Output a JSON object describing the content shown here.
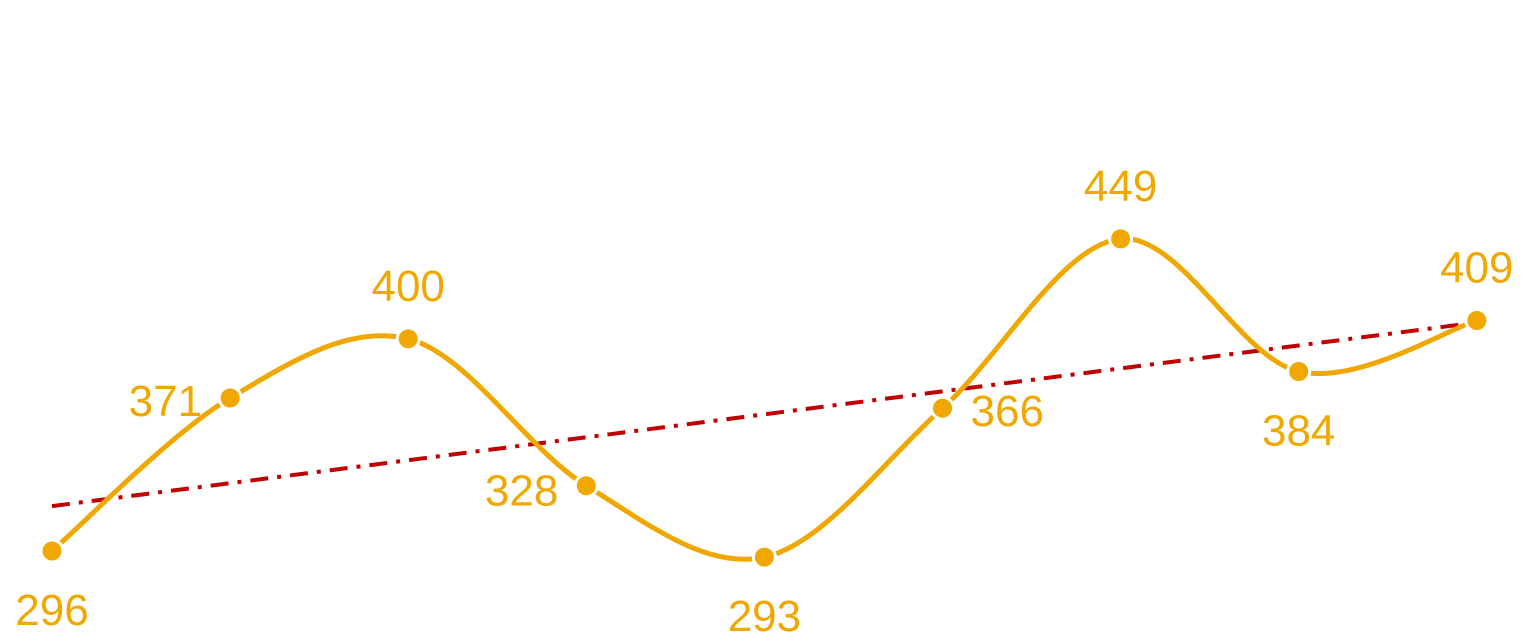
{
  "colors": {
    "series": "#F0A800",
    "trend": "#C00000",
    "background": "#FFFFFF"
  },
  "chart_data": {
    "type": "line",
    "title": "",
    "xlabel": "",
    "ylabel": "",
    "x": [
      1,
      2,
      3,
      4,
      5,
      6,
      7,
      8,
      9
    ],
    "values": [
      296,
      371,
      400,
      328,
      293,
      366,
      449,
      384,
      409
    ],
    "labels": [
      "296",
      "371",
      "400",
      "328",
      "293",
      "366",
      "449",
      "384",
      "409"
    ],
    "smooth": true,
    "markers": true,
    "trendline": {
      "type": "linear",
      "style": "dash-dot",
      "start": 318,
      "end": 408
    },
    "axes_visible": false,
    "grid": false,
    "legend": "none"
  }
}
